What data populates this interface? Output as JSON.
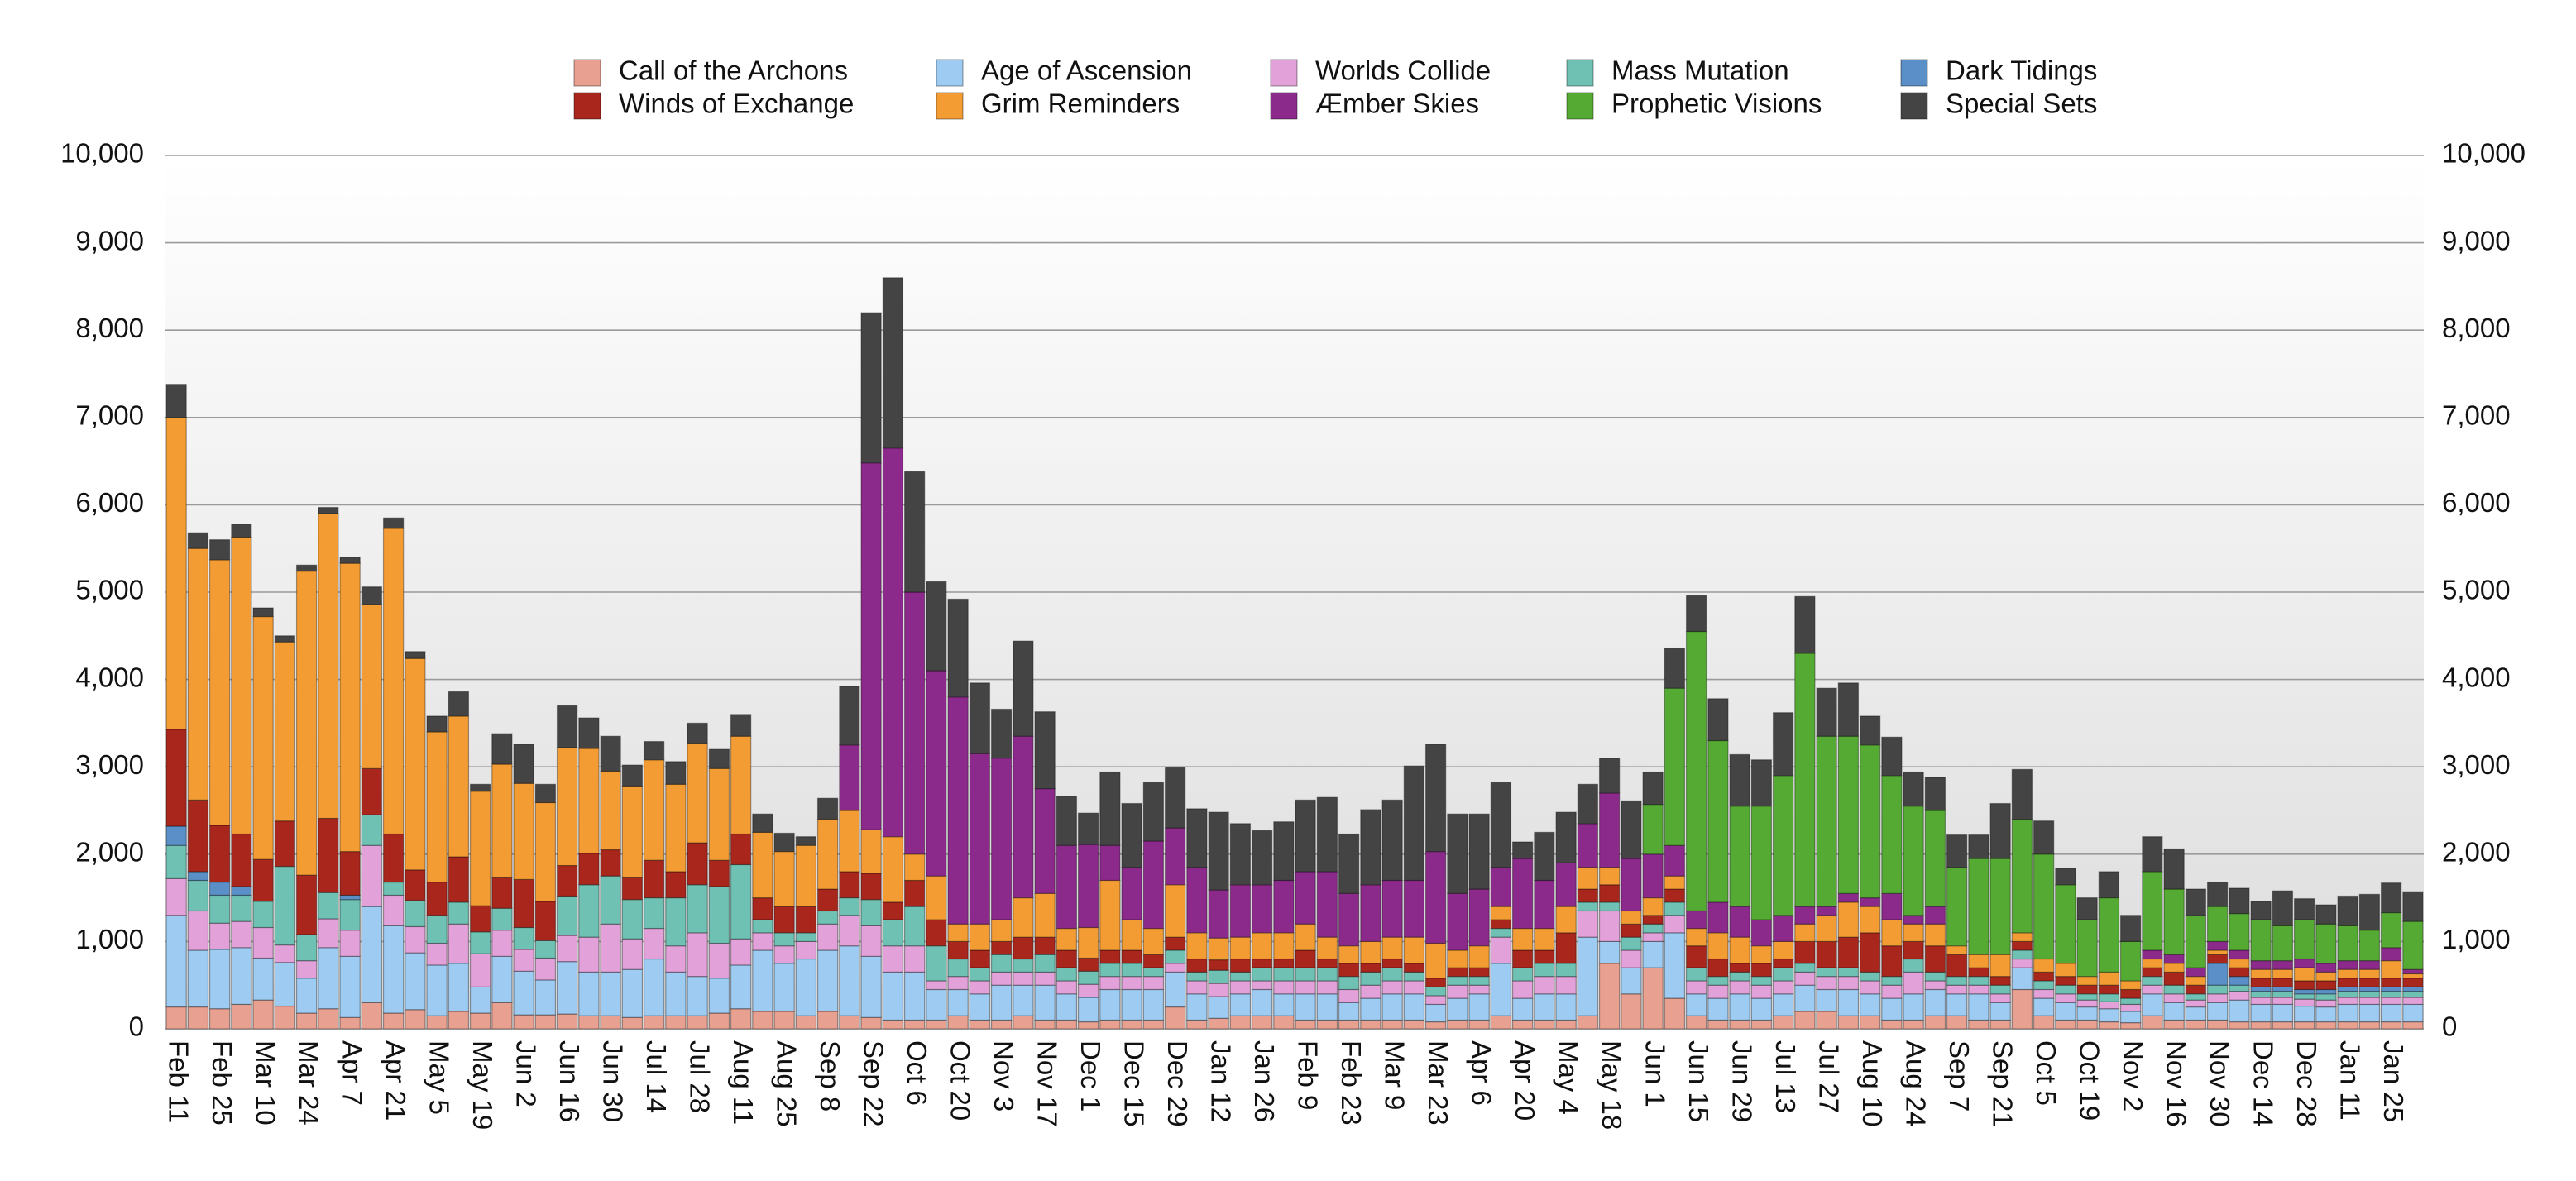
{
  "chart_data": {
    "type": "bar",
    "stacked": true,
    "grid": true,
    "legend": "top",
    "categories": [
      "Feb 11",
      null,
      "Feb 25",
      null,
      "Mar 10",
      null,
      "Mar 24",
      null,
      "Apr 7",
      null,
      "Apr 21",
      null,
      "May 5",
      null,
      "May 19",
      null,
      "Jun 2",
      null,
      "Jun 16",
      null,
      "Jun 30",
      null,
      "Jul 14",
      null,
      "Jul 28",
      null,
      "Aug 11",
      null,
      "Aug 25",
      null,
      "Sep 8",
      null,
      "Sep 22",
      null,
      "Oct 6",
      null,
      "Oct 20",
      null,
      "Nov 3",
      null,
      "Nov 17",
      null,
      "Dec 1",
      null,
      "Dec 15",
      null,
      "Dec 29",
      null,
      "Jan 12",
      null,
      "Jan 26",
      null,
      "Feb 9",
      null,
      "Feb 23",
      null,
      "Mar 9",
      null,
      "Mar 23",
      null,
      "Apr 6",
      null,
      "Apr 20",
      null,
      "May 4",
      null,
      "May 18",
      null,
      "Jun 1",
      null,
      "Jun 15",
      null,
      "Jun 29",
      null,
      "Jul 13",
      null,
      "Jul 27",
      null,
      "Aug 10",
      null,
      "Aug 24",
      null,
      "Sep 7",
      null,
      "Sep 21",
      null,
      "Oct 5",
      null,
      "Oct 19",
      null,
      "Nov 2",
      null,
      "Nov 16",
      null,
      "Nov 30",
      null,
      "Dec 14",
      null,
      "Dec 28",
      null,
      "Jan 11",
      null,
      "Jan 25",
      null
    ],
    "ylim": [
      0,
      10000
    ],
    "yticks": [
      0,
      {
        "value": 1000,
        "label": "1,000"
      },
      {
        "value": 2000,
        "label": "2,000"
      },
      {
        "value": 3000,
        "label": "3,000"
      },
      {
        "value": 4000,
        "label": "4,000"
      },
      {
        "value": 5000,
        "label": "5,000"
      },
      {
        "value": 6000,
        "label": "6,000"
      },
      {
        "value": 7000,
        "label": "7,000"
      },
      {
        "value": 8000,
        "label": "8,000"
      },
      {
        "value": 9000,
        "label": "9,000"
      },
      {
        "value": 10000,
        "label": "10,000"
      }
    ],
    "series": [
      {
        "name": "Call of the Archons",
        "color": "#e8a090",
        "values": [
          250,
          250,
          230,
          280,
          330,
          260,
          180,
          230,
          130,
          300,
          180,
          220,
          150,
          200,
          180,
          300,
          160,
          160,
          170,
          150,
          150,
          130,
          150,
          150,
          150,
          180,
          230,
          200,
          200,
          150,
          200,
          150,
          130,
          100,
          100,
          100,
          150,
          100,
          100,
          150,
          100,
          100,
          80,
          100,
          100,
          100,
          250,
          100,
          120,
          150,
          150,
          150,
          100,
          100,
          100,
          100,
          100,
          100,
          80,
          100,
          100,
          150,
          100,
          100,
          100,
          150,
          750,
          400,
          700,
          350,
          150,
          100,
          100,
          100,
          150,
          200,
          200,
          150,
          150,
          100,
          100,
          150,
          150,
          100,
          100,
          450,
          150,
          100,
          100,
          80,
          70,
          150,
          100,
          100,
          100,
          80,
          80,
          80,
          80,
          80,
          80,
          80,
          80,
          80
        ]
      },
      {
        "name": "Age of Ascension",
        "color": "#9ecbf2",
        "values": [
          1050,
          650,
          680,
          650,
          480,
          500,
          400,
          700,
          700,
          1100,
          1000,
          650,
          580,
          550,
          300,
          530,
          500,
          400,
          600,
          500,
          500,
          550,
          650,
          500,
          450,
          400,
          500,
          700,
          550,
          650,
          700,
          800,
          700,
          550,
          550,
          350,
          300,
          300,
          400,
          350,
          400,
          300,
          280,
          350,
          350,
          350,
          400,
          300,
          250,
          250,
          300,
          250,
          300,
          300,
          200,
          250,
          300,
          300,
          200,
          250,
          300,
          600,
          250,
          300,
          300,
          900,
          250,
          300,
          300,
          750,
          250,
          250,
          300,
          250,
          250,
          300,
          250,
          300,
          250,
          250,
          300,
          300,
          250,
          300,
          200,
          250,
          200,
          200,
          150,
          150,
          130,
          250,
          200,
          150,
          200,
          250,
          200,
          200,
          180,
          170,
          200,
          200,
          200,
          200
        ]
      },
      {
        "name": "Worlds Collide",
        "color": "#e2a2d9",
        "values": [
          420,
          450,
          300,
          300,
          350,
          200,
          200,
          330,
          300,
          700,
          350,
          300,
          250,
          450,
          380,
          300,
          250,
          250,
          300,
          400,
          550,
          350,
          350,
          300,
          500,
          400,
          300,
          200,
          200,
          200,
          300,
          350,
          350,
          300,
          300,
          100,
          150,
          150,
          150,
          150,
          150,
          150,
          150,
          150,
          150,
          150,
          100,
          150,
          150,
          150,
          100,
          150,
          150,
          150,
          150,
          150,
          150,
          150,
          100,
          150,
          100,
          300,
          200,
          200,
          200,
          300,
          350,
          200,
          100,
          200,
          150,
          150,
          150,
          150,
          150,
          150,
          150,
          150,
          150,
          150,
          250,
          100,
          100,
          100,
          100,
          100,
          100,
          100,
          80,
          80,
          80,
          100,
          100,
          80,
          100,
          100,
          80,
          80,
          80,
          80,
          80,
          80,
          80,
          80
        ]
      },
      {
        "name": "Mass Mutation",
        "color": "#6fc1b3",
        "values": [
          380,
          350,
          320,
          300,
          300,
          900,
          300,
          300,
          350,
          350,
          150,
          300,
          320,
          250,
          250,
          250,
          250,
          200,
          450,
          600,
          550,
          450,
          350,
          550,
          550,
          650,
          850,
          150,
          150,
          100,
          150,
          200,
          300,
          300,
          450,
          400,
          200,
          150,
          200,
          150,
          200,
          150,
          150,
          150,
          150,
          100,
          150,
          100,
          150,
          100,
          150,
          150,
          150,
          150,
          150,
          150,
          150,
          100,
          100,
          100,
          100,
          100,
          150,
          150,
          150,
          100,
          100,
          150,
          100,
          150,
          150,
          100,
          100,
          100,
          150,
          100,
          100,
          100,
          100,
          100,
          150,
          100,
          100,
          100,
          100,
          100,
          100,
          100,
          70,
          90,
          70,
          100,
          100,
          70,
          100,
          70,
          70,
          70,
          60,
          70,
          70,
          70,
          70,
          70
        ]
      },
      {
        "name": "Dark Tidings",
        "color": "#5b8fc7",
        "values": [
          220,
          100,
          150,
          100,
          0,
          0,
          0,
          0,
          50,
          0,
          0,
          0,
          0,
          0,
          0,
          0,
          0,
          0,
          0,
          0,
          0,
          0,
          0,
          0,
          0,
          0,
          0,
          0,
          0,
          0,
          0,
          0,
          0,
          0,
          0,
          0,
          0,
          0,
          0,
          0,
          0,
          0,
          0,
          0,
          0,
          0,
          0,
          0,
          0,
          0,
          0,
          0,
          0,
          0,
          0,
          0,
          0,
          0,
          0,
          0,
          0,
          0,
          0,
          0,
          0,
          0,
          0,
          0,
          0,
          0,
          0,
          0,
          0,
          0,
          0,
          0,
          0,
          0,
          0,
          0,
          0,
          0,
          0,
          0,
          0,
          0,
          0,
          0,
          0,
          0,
          0,
          0,
          0,
          0,
          250,
          100,
          50,
          50,
          50,
          50,
          50,
          50,
          50,
          50
        ]
      },
      {
        "name": "Winds of Exchange",
        "color": "#a8261c",
        "values": [
          1110,
          820,
          650,
          600,
          480,
          520,
          680,
          850,
          500,
          530,
          550,
          350,
          380,
          520,
          300,
          350,
          550,
          450,
          350,
          360,
          300,
          250,
          430,
          300,
          480,
          300,
          350,
          250,
          300,
          300,
          250,
          300,
          300,
          200,
          300,
          300,
          200,
          200,
          150,
          250,
          200,
          200,
          150,
          150,
          150,
          150,
          150,
          150,
          120,
          150,
          100,
          100,
          200,
          100,
          150,
          100,
          100,
          100,
          100,
          100,
          100,
          100,
          200,
          150,
          350,
          150,
          200,
          150,
          100,
          150,
          250,
          200,
          100,
          150,
          100,
          250,
          300,
          350,
          450,
          350,
          200,
          300,
          250,
          100,
          100,
          100,
          100,
          100,
          100,
          100,
          100,
          100,
          150,
          100,
          100,
          100,
          100,
          100,
          100,
          100,
          100,
          100,
          100,
          100
        ]
      },
      {
        "name": "Grim Reminders",
        "color": "#f39c34",
        "values": [
          3570,
          2880,
          3040,
          3400,
          2780,
          2050,
          3480,
          3490,
          3300,
          1880,
          3500,
          2420,
          1720,
          1610,
          1310,
          1300,
          1100,
          1130,
          1350,
          1200,
          900,
          1050,
          1150,
          1000,
          1140,
          1050,
          1120,
          750,
          630,
          700,
          800,
          700,
          500,
          750,
          300,
          500,
          200,
          300,
          250,
          450,
          500,
          250,
          350,
          800,
          350,
          300,
          600,
          300,
          250,
          250,
          300,
          300,
          300,
          250,
          200,
          250,
          250,
          300,
          400,
          200,
          250,
          150,
          250,
          250,
          300,
          250,
          200,
          150,
          200,
          150,
          200,
          300,
          300,
          200,
          200,
          200,
          300,
          400,
          300,
          300,
          200,
          250,
          100,
          150,
          250,
          100,
          150,
          150,
          100,
          150,
          100,
          100,
          100,
          100,
          50,
          100,
          100,
          100,
          150,
          100,
          100,
          100,
          200,
          50
        ]
      },
      {
        "name": "Æmber Skies",
        "color": "#8b2a8b",
        "values": [
          0,
          0,
          0,
          0,
          0,
          0,
          0,
          0,
          0,
          0,
          0,
          0,
          0,
          0,
          0,
          0,
          0,
          0,
          0,
          0,
          0,
          0,
          0,
          0,
          0,
          0,
          0,
          0,
          0,
          0,
          0,
          750,
          4200,
          4450,
          3000,
          2350,
          2600,
          1950,
          1850,
          1850,
          1200,
          950,
          950,
          400,
          600,
          1000,
          650,
          750,
          550,
          600,
          550,
          600,
          600,
          750,
          600,
          650,
          650,
          650,
          1050,
          650,
          650,
          450,
          800,
          550,
          500,
          500,
          850,
          600,
          500,
          350,
          200,
          350,
          350,
          300,
          300,
          200,
          100,
          100,
          100,
          300,
          100,
          200,
          0,
          0,
          0,
          0,
          0,
          0,
          0,
          0,
          0,
          100,
          100,
          100,
          100,
          100,
          100,
          100,
          100,
          100,
          100,
          100,
          150,
          50
        ]
      },
      {
        "name": "Prophetic Visions",
        "color": "#55aa33",
        "values": [
          0,
          0,
          0,
          0,
          0,
          0,
          0,
          0,
          0,
          0,
          0,
          0,
          0,
          0,
          0,
          0,
          0,
          0,
          0,
          0,
          0,
          0,
          0,
          0,
          0,
          0,
          0,
          0,
          0,
          0,
          0,
          0,
          0,
          0,
          0,
          0,
          0,
          0,
          0,
          0,
          0,
          0,
          0,
          0,
          0,
          0,
          0,
          0,
          0,
          0,
          0,
          0,
          0,
          0,
          0,
          0,
          0,
          0,
          0,
          0,
          0,
          0,
          0,
          0,
          0,
          0,
          0,
          0,
          570,
          1800,
          3200,
          1850,
          1150,
          1300,
          1600,
          2900,
          1950,
          1800,
          1750,
          1350,
          1250,
          1100,
          900,
          1100,
          1100,
          1300,
          1200,
          900,
          650,
          850,
          450,
          900,
          750,
          600,
          400,
          420,
          470,
          400,
          450,
          450,
          400,
          350,
          400,
          550
        ]
      },
      {
        "name": "Special Sets",
        "color": "#444444",
        "values": [
          380,
          180,
          230,
          150,
          100,
          70,
          70,
          70,
          70,
          200,
          120,
          80,
          180,
          280,
          80,
          350,
          450,
          210,
          480,
          350,
          400,
          240,
          210,
          260,
          230,
          220,
          250,
          210,
          210,
          100,
          240,
          670,
          1720,
          1950,
          1380,
          1020,
          1120,
          810,
          560,
          1090,
          880,
          560,
          360,
          840,
          730,
          670,
          690,
          670,
          890,
          700,
          620,
          670,
          820,
          850,
          680,
          860,
          920,
          1310,
          1230,
          910,
          860,
          970,
          190,
          550,
          580,
          450,
          400,
          660,
          370,
          460,
          410,
          480,
          590,
          530,
          720,
          650,
          550,
          610,
          330,
          440,
          390,
          380,
          370,
          270,
          630,
          570,
          380,
          190,
          250,
          300,
          300,
          400,
          460,
          300,
          280,
          290,
          210,
          400,
          240,
          220,
          340,
          410,
          340,
          340
        ]
      }
    ]
  }
}
